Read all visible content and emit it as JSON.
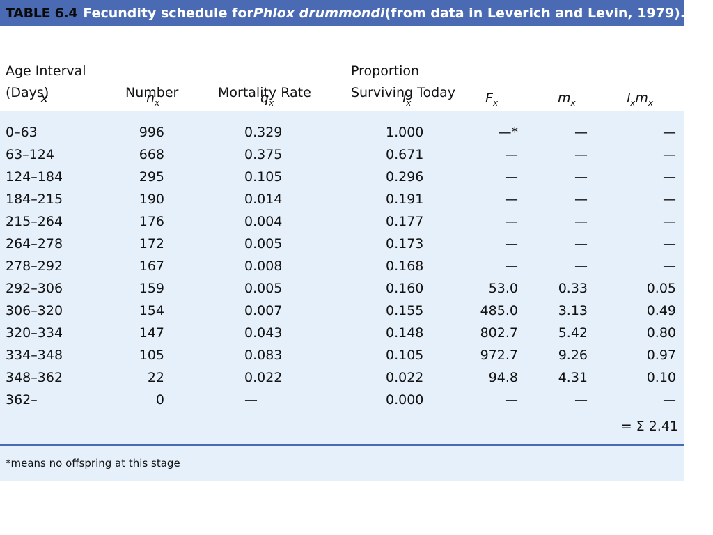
{
  "title": {
    "number": "TABLE 6.4",
    "text_before": "Fecundity schedule for ",
    "species": "Phlox drummondi",
    "text_after": " (from data in Leverich and Levin, 1979)."
  },
  "headers": {
    "age_line1": "Age Interval",
    "age_line2": "(Days)",
    "number": "Number",
    "mortality": "Mortality Rate",
    "prop_line1": "Proportion",
    "prop_line2": "Surviving Today"
  },
  "symbols": {
    "x": "x",
    "n": "n",
    "n_sub": "x",
    "q": "q",
    "q_sub": "x",
    "l": "l",
    "l_sub": "x",
    "F": "F",
    "F_sub": "x",
    "m": "m",
    "m_sub": "x",
    "lm_l": "l",
    "lm_sub1": "x",
    "lm_m": "m",
    "lm_sub2": "x"
  },
  "rows": [
    {
      "age": " 0–63",
      "n": "996",
      "q": "0.329",
      "l": "1.000",
      "F": "—*",
      "m": "—",
      "lm": "—"
    },
    {
      "age": "63–124",
      "n": "668",
      "q": "0.375",
      "l": "0.671",
      "F": "—",
      "m": "—",
      "lm": "—"
    },
    {
      "age": "124–184",
      "n": "295",
      "q": "0.105",
      "l": "0.296",
      "F": "—",
      "m": "—",
      "lm": "—"
    },
    {
      "age": "184–215",
      "n": "190",
      "q": "0.014",
      "l": "0.191",
      "F": "—",
      "m": "—",
      "lm": "—"
    },
    {
      "age": "215–264",
      "n": "176",
      "q": "0.004",
      "l": "0.177",
      "F": "—",
      "m": "—",
      "lm": "—"
    },
    {
      "age": "264–278",
      "n": "172",
      "q": "0.005",
      "l": "0.173",
      "F": "—",
      "m": "—",
      "lm": "—"
    },
    {
      "age": "278–292",
      "n": "167",
      "q": "0.008",
      "l": "0.168",
      "F": "—",
      "m": "—",
      "lm": "—"
    },
    {
      "age": "292–306",
      "n": "159",
      "q": "0.005",
      "l": "0.160",
      "F": "53.0",
      "m": "0.33",
      "lm": "0.05"
    },
    {
      "age": "306–320",
      "n": "154",
      "q": "0.007",
      "l": "0.155",
      "F": "485.0",
      "m": "3.13",
      "lm": "0.49"
    },
    {
      "age": "320–334",
      "n": "147",
      "q": "0.043",
      "l": "0.148",
      "F": "802.7",
      "m": "5.42",
      "lm": "0.80"
    },
    {
      "age": "334–348",
      "n": "105",
      "q": "0.083",
      "l": "0.105",
      "F": "972.7",
      "m": "9.26",
      "lm": "0.97"
    },
    {
      "age": "348–362",
      "n": "22",
      "q": "0.022",
      "l": "0.022",
      "F": "94.8",
      "m": "4.31",
      "lm": "0.10"
    },
    {
      "age": "362–",
      "n": "0",
      "q": "—",
      "l": "0.000",
      "F": "—",
      "m": "—",
      "lm": "—"
    }
  ],
  "sum_text": "= Σ 2.41",
  "footnote": "*means no offspring at this stage",
  "colors": {
    "title_bar": "#4a6ab3",
    "body_background": "#e6f0fb"
  }
}
